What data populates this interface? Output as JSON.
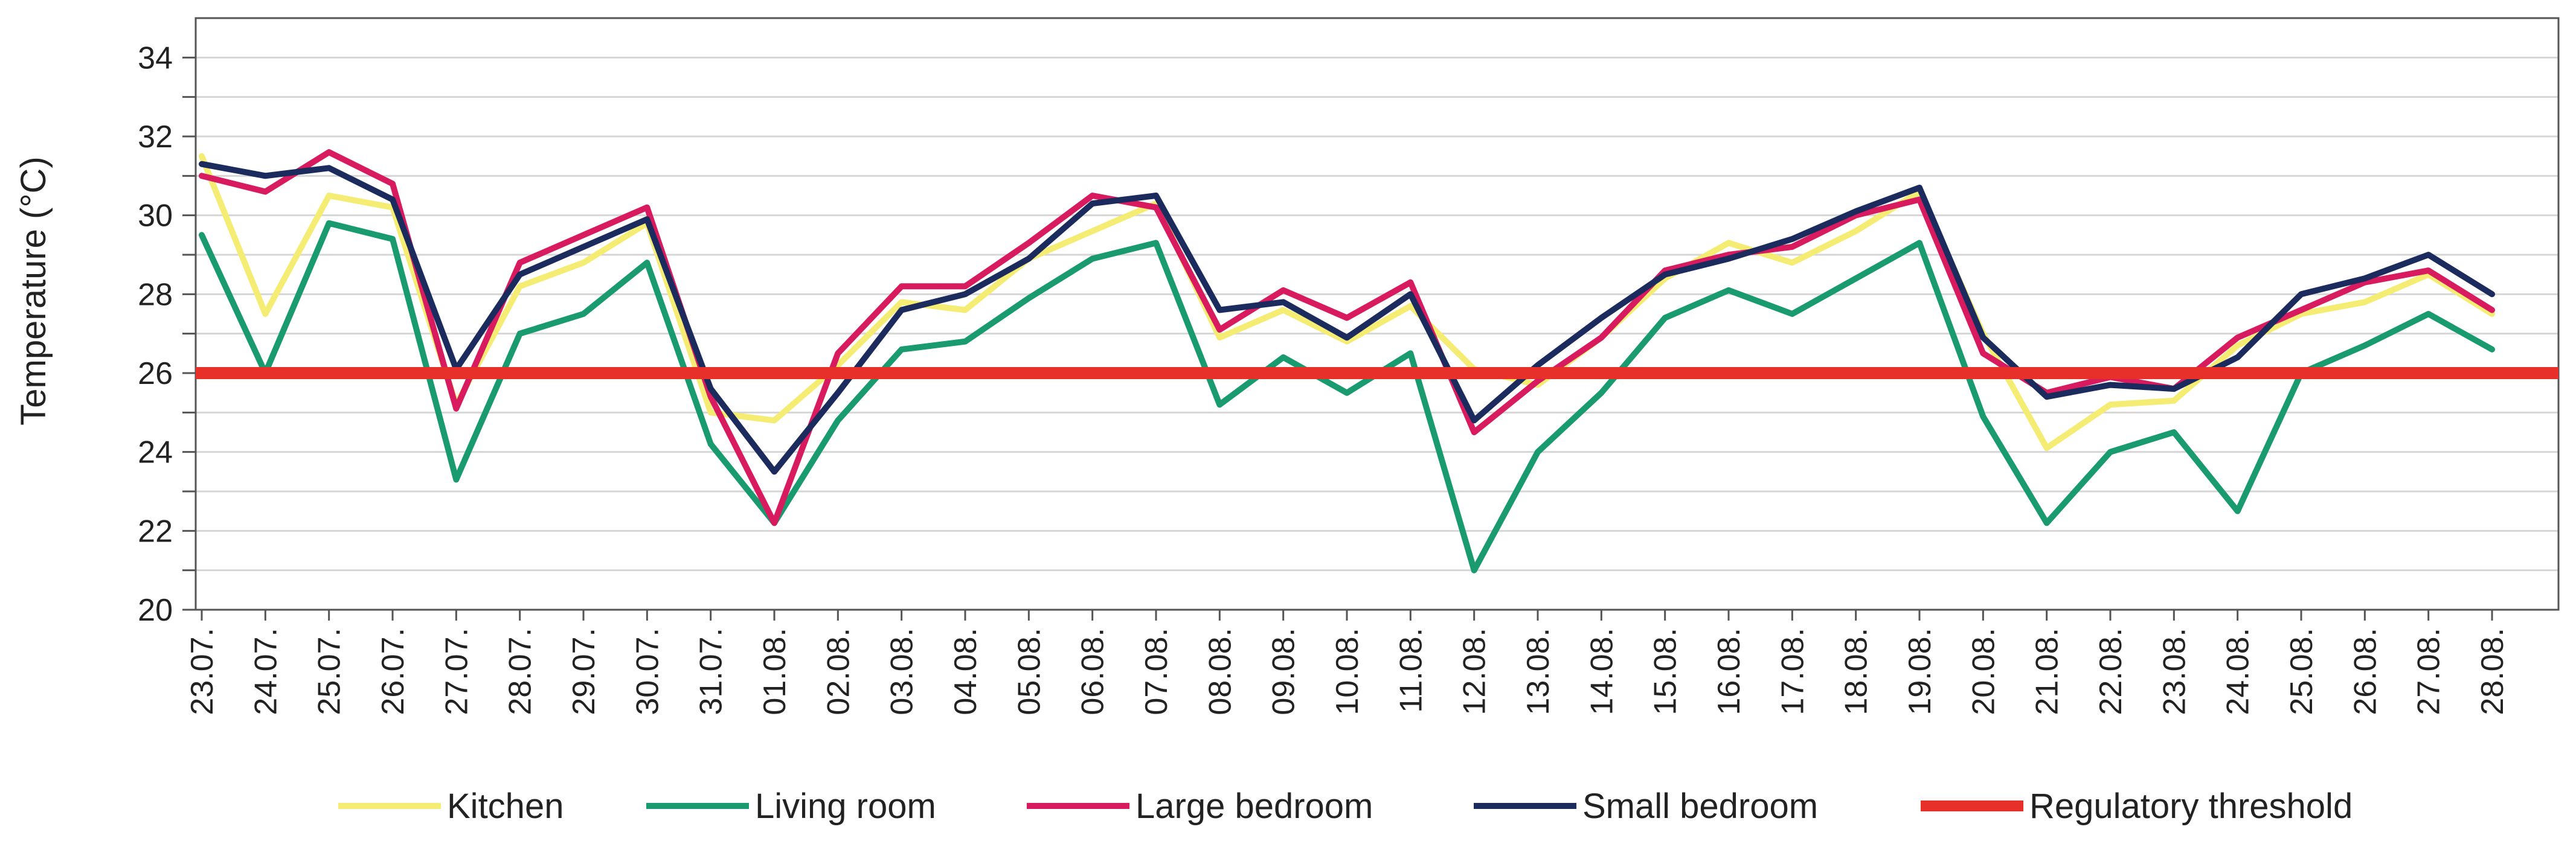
{
  "chart_data": {
    "type": "line",
    "title": "",
    "xlabel": "",
    "ylabel": "Temperature (°C)",
    "ylim": [
      20,
      35
    ],
    "yticks": [
      "20",
      "22",
      "24",
      "26",
      "28",
      "30",
      "32",
      "34"
    ],
    "grid": true,
    "legend_position": "bottom",
    "categories": [
      "23.07.",
      "24.07.",
      "25.07.",
      "26.07.",
      "27.07.",
      "28.07.",
      "29.07.",
      "30.07.",
      "31.07.",
      "01.08.",
      "02.08.",
      "03.08.",
      "04.08.",
      "05.08.",
      "06.08.",
      "07.08.",
      "08.08.",
      "09.08.",
      "10.08.",
      "11.08.",
      "12.08.",
      "13.08.",
      "14.08.",
      "15.08.",
      "16.08.",
      "17.08.",
      "18.08.",
      "19.08.",
      "20.08.",
      "21.08.",
      "22.08.",
      "23.08.",
      "24.08.",
      "25.08.",
      "26.08.",
      "27.08.",
      "28.08."
    ],
    "threshold": {
      "name": "Regulatory threshold",
      "value": 26,
      "color": "#e8302b"
    },
    "series": [
      {
        "name": "Kitchen",
        "color": "#f5ec73",
        "values": [
          31.5,
          27.5,
          30.5,
          30.2,
          25.2,
          28.2,
          28.8,
          29.8,
          25.0,
          24.8,
          26.2,
          27.8,
          27.6,
          28.9,
          29.6,
          30.3,
          26.9,
          27.6,
          26.8,
          27.7,
          26.1,
          25.7,
          26.9,
          28.4,
          29.3,
          28.8,
          29.6,
          30.6,
          27.0,
          24.1,
          25.2,
          25.3,
          26.7,
          27.5,
          27.8,
          28.5,
          27.5
        ]
      },
      {
        "name": "Living room",
        "color": "#1a9b6f",
        "values": [
          29.5,
          26.0,
          29.8,
          29.4,
          23.3,
          27.0,
          27.5,
          28.8,
          24.2,
          22.2,
          24.8,
          26.6,
          26.8,
          27.9,
          28.9,
          29.3,
          25.2,
          26.4,
          25.5,
          26.5,
          21.0,
          24.0,
          25.5,
          27.4,
          28.1,
          27.5,
          28.4,
          29.3,
          24.9,
          22.2,
          24.0,
          24.5,
          22.5,
          26.0,
          26.7,
          27.5,
          26.6
        ]
      },
      {
        "name": "Large bedroom",
        "color": "#d81b5f",
        "values": [
          31.0,
          30.6,
          31.6,
          30.8,
          25.1,
          28.8,
          29.5,
          30.2,
          25.4,
          22.2,
          26.5,
          28.2,
          28.2,
          29.3,
          30.5,
          30.2,
          27.1,
          28.1,
          27.4,
          28.3,
          24.5,
          25.8,
          26.9,
          28.6,
          29.0,
          29.2,
          30.0,
          30.4,
          26.5,
          25.5,
          25.9,
          25.6,
          26.9,
          27.6,
          28.3,
          28.6,
          27.6
        ]
      },
      {
        "name": "Small bedroom",
        "color": "#1c2b5e",
        "values": [
          31.3,
          31.0,
          31.2,
          30.4,
          26.1,
          28.5,
          29.2,
          29.9,
          25.6,
          23.5,
          25.5,
          27.6,
          28.0,
          28.9,
          30.3,
          30.5,
          27.6,
          27.8,
          26.9,
          28.0,
          24.8,
          26.2,
          27.4,
          28.5,
          28.9,
          29.4,
          30.1,
          30.7,
          26.9,
          25.4,
          25.7,
          25.6,
          26.4,
          28.0,
          28.4,
          29.0,
          28.0
        ]
      }
    ]
  }
}
